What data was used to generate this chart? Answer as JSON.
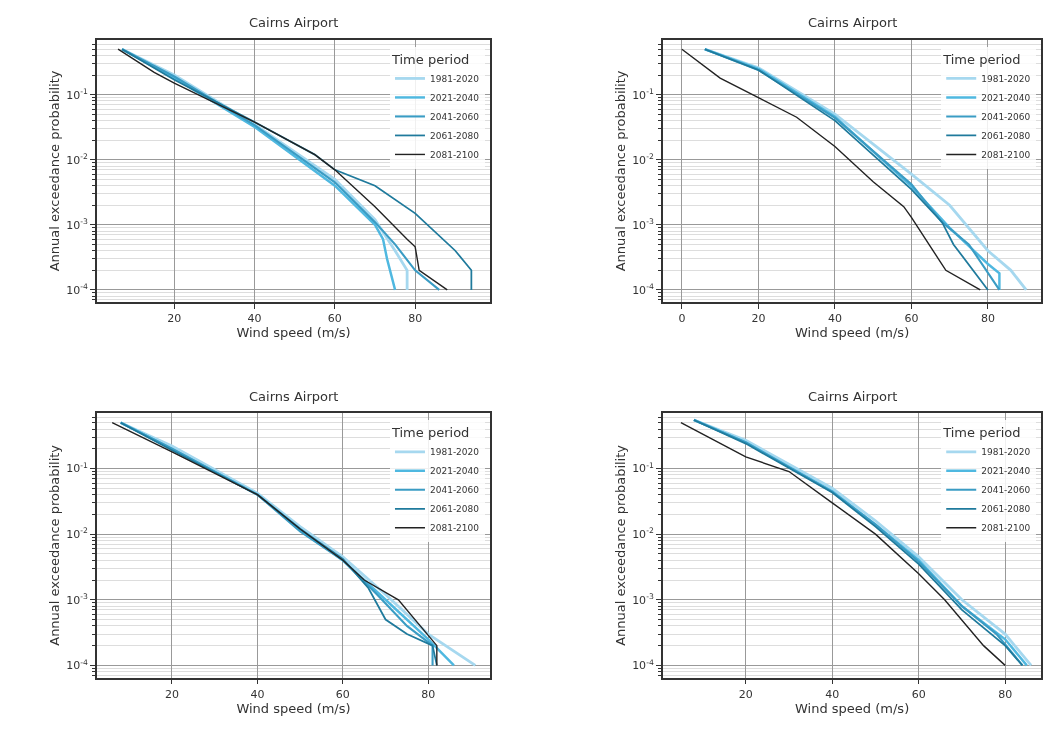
{
  "chart_data": [
    {
      "type": "line",
      "title": "Cairns Airport",
      "xlabel": "Wind speed (m/s)",
      "ylabel": "Annual exceedance probability",
      "legend_title": "Time period",
      "legend": "top right",
      "log": "y",
      "grid": true,
      "xlim": [
        0.7,
        98.7
      ],
      "xticks": [
        20,
        40,
        60,
        80
      ],
      "ylim": [
        6.5e-05,
        0.7
      ],
      "yticks": [
        {
          "value": 0.1,
          "label": "10$^{-1}$"
        },
        {
          "value": 0.01,
          "label": "10$^{-2}$"
        },
        {
          "value": 0.001,
          "label": "10$^{-3}$"
        },
        {
          "value": 0.0001,
          "label": "10$^{-4}$"
        }
      ],
      "series": [
        {
          "name": "1981-2020",
          "color": "#a6d8ef",
          "x": [
            7,
            20,
            40,
            60,
            70,
            75,
            78,
            78
          ],
          "values": [
            0.5,
            0.2,
            0.035,
            0.005,
            0.0012,
            0.0004,
            0.0002,
            0.0001
          ]
        },
        {
          "name": "2021-2040",
          "color": "#4fb8e0",
          "x": [
            7,
            20,
            40,
            60,
            70,
            72,
            73,
            75
          ],
          "values": [
            0.5,
            0.18,
            0.032,
            0.004,
            0.001,
            0.0006,
            0.0003,
            0.0001
          ]
        },
        {
          "name": "2041-2060",
          "color": "#3a9cc4",
          "x": [
            7,
            20,
            40,
            60,
            70,
            75,
            80,
            86
          ],
          "values": [
            0.5,
            0.19,
            0.034,
            0.0045,
            0.0011,
            0.0005,
            0.0002,
            0.0001
          ]
        },
        {
          "name": "2061-2080",
          "color": "#1f7a9c",
          "x": [
            7,
            20,
            40,
            55,
            60,
            70,
            80,
            90,
            94,
            94
          ],
          "values": [
            0.5,
            0.17,
            0.038,
            0.012,
            0.007,
            0.004,
            0.0015,
            0.0004,
            0.0002,
            0.0001
          ]
        },
        {
          "name": "2081-2100",
          "color": "#222222",
          "x": [
            6,
            15,
            20,
            40,
            55,
            60,
            70,
            78,
            80,
            81,
            88
          ],
          "values": [
            0.5,
            0.22,
            0.15,
            0.038,
            0.012,
            0.007,
            0.0019,
            0.0006,
            0.00046,
            0.0002,
            0.0001
          ]
        }
      ]
    },
    {
      "type": "line",
      "title": "Cairns Airport",
      "xlabel": "Wind speed (m/s)",
      "ylabel": "Annual exceedance probability",
      "legend_title": "Time period",
      "legend": "top right",
      "log": "y",
      "grid": true,
      "xlim": [
        -5,
        94
      ],
      "xticks": [
        0,
        20,
        40,
        60,
        80
      ],
      "ylim": [
        6.5e-05,
        0.7
      ],
      "yticks": [
        {
          "value": 0.1,
          "label": "10$^{-1}$"
        },
        {
          "value": 0.01,
          "label": "10$^{-2}$"
        },
        {
          "value": 0.001,
          "label": "10$^{-3}$"
        },
        {
          "value": 0.0001,
          "label": "10$^{-4}$"
        }
      ],
      "series": [
        {
          "name": "1981-2020",
          "color": "#a6d8ef",
          "x": [
            6,
            20,
            40,
            60,
            70,
            80,
            86,
            90
          ],
          "values": [
            0.5,
            0.26,
            0.05,
            0.006,
            0.002,
            0.0004,
            0.0002,
            0.0001
          ]
        },
        {
          "name": "2021-2040",
          "color": "#4fb8e0",
          "x": [
            6,
            20,
            40,
            60,
            70,
            80,
            83,
            83
          ],
          "values": [
            0.5,
            0.25,
            0.046,
            0.0039,
            0.0009,
            0.00025,
            0.00018,
            0.0001
          ]
        },
        {
          "name": "2041-2060",
          "color": "#3a9cc4",
          "x": [
            6,
            20,
            40,
            60,
            68,
            75,
            83
          ],
          "values": [
            0.5,
            0.24,
            0.044,
            0.0042,
            0.0011,
            0.0005,
            0.0001
          ]
        },
        {
          "name": "2061-2080",
          "color": "#1f7a9c",
          "x": [
            6,
            20,
            40,
            60,
            68,
            71,
            80
          ],
          "values": [
            0.5,
            0.24,
            0.04,
            0.0035,
            0.0011,
            0.0005,
            0.0001
          ]
        },
        {
          "name": "2081-2100",
          "color": "#222222",
          "x": [
            0,
            10,
            20,
            30,
            40,
            50,
            58,
            60,
            69,
            78
          ],
          "values": [
            0.5,
            0.18,
            0.09,
            0.045,
            0.016,
            0.0046,
            0.0019,
            0.0013,
            0.0002,
            0.0001
          ]
        }
      ]
    },
    {
      "type": "line",
      "title": "Cairns Airport",
      "xlabel": "Wind speed (m/s)",
      "ylabel": "Annual exceedance probability",
      "legend_title": "Time period",
      "legend": "top right",
      "log": "y",
      "grid": true,
      "xlim": [
        2.4,
        94.5
      ],
      "xticks": [
        20,
        40,
        60,
        80
      ],
      "ylim": [
        6.5e-05,
        0.7
      ],
      "yticks": [
        {
          "value": 0.1,
          "label": "10$^{-1}$"
        },
        {
          "value": 0.01,
          "label": "10$^{-2}$"
        },
        {
          "value": 0.001,
          "label": "10$^{-3}$"
        },
        {
          "value": 0.0001,
          "label": "10$^{-4}$"
        }
      ],
      "series": [
        {
          "name": "1981-2020",
          "color": "#a6d8ef",
          "x": [
            8,
            20,
            40,
            50,
            60,
            70,
            80,
            91
          ],
          "values": [
            0.5,
            0.22,
            0.042,
            0.013,
            0.0045,
            0.0012,
            0.0003,
            0.0001
          ]
        },
        {
          "name": "2021-2040",
          "color": "#4fb8e0",
          "x": [
            8,
            20,
            40,
            50,
            60,
            70,
            80,
            86
          ],
          "values": [
            0.5,
            0.2,
            0.04,
            0.012,
            0.004,
            0.001,
            0.00025,
            0.0001
          ]
        },
        {
          "name": "2041-2060",
          "color": "#3a9cc4",
          "x": [
            8,
            20,
            40,
            50,
            60,
            68,
            75,
            81,
            81
          ],
          "values": [
            0.5,
            0.2,
            0.04,
            0.011,
            0.004,
            0.0012,
            0.0004,
            0.0002,
            0.0001
          ]
        },
        {
          "name": "2061-2080",
          "color": "#1f7a9c",
          "x": [
            8,
            20,
            40,
            50,
            60,
            66,
            70,
            75,
            81,
            82
          ],
          "values": [
            0.5,
            0.19,
            0.04,
            0.012,
            0.0042,
            0.0015,
            0.0005,
            0.0003,
            0.0002,
            0.0001
          ]
        },
        {
          "name": "2081-2100",
          "color": "#222222",
          "x": [
            6,
            20,
            40,
            50,
            60,
            65,
            73,
            82,
            82
          ],
          "values": [
            0.5,
            0.18,
            0.04,
            0.012,
            0.004,
            0.002,
            0.001,
            0.0002,
            0.0001
          ]
        }
      ]
    },
    {
      "type": "line",
      "title": "Cairns Airport",
      "xlabel": "Wind speed (m/s)",
      "ylabel": "Annual exceedance probability",
      "legend_title": "Time period",
      "legend": "top right",
      "log": "y",
      "grid": true,
      "xlim": [
        0.8,
        88.4
      ],
      "xticks": [
        20,
        40,
        60,
        80
      ],
      "ylim": [
        6.5e-05,
        0.7
      ],
      "yticks": [
        {
          "value": 0.1,
          "label": "10$^{-1}$"
        },
        {
          "value": 0.01,
          "label": "10$^{-2}$"
        },
        {
          "value": 0.001,
          "label": "10$^{-3}$"
        },
        {
          "value": 0.0001,
          "label": "10$^{-4}$"
        }
      ],
      "series": [
        {
          "name": "1981-2020",
          "color": "#a6d8ef",
          "x": [
            8,
            20,
            40,
            50,
            60,
            70,
            80,
            86
          ],
          "values": [
            0.55,
            0.27,
            0.05,
            0.016,
            0.0045,
            0.001,
            0.0003,
            0.0001
          ]
        },
        {
          "name": "2021-2040",
          "color": "#4fb8e0",
          "x": [
            8,
            20,
            40,
            50,
            60,
            70,
            80,
            85
          ],
          "values": [
            0.55,
            0.25,
            0.045,
            0.014,
            0.004,
            0.0008,
            0.00025,
            0.0001
          ]
        },
        {
          "name": "2041-2060",
          "color": "#3a9cc4",
          "x": [
            8,
            20,
            40,
            50,
            60,
            70,
            78,
            84
          ],
          "values": [
            0.55,
            0.25,
            0.044,
            0.014,
            0.0038,
            0.0008,
            0.0003,
            0.0001
          ]
        },
        {
          "name": "2061-2080",
          "color": "#1f7a9c",
          "x": [
            8,
            20,
            40,
            50,
            60,
            70,
            80,
            84
          ],
          "values": [
            0.55,
            0.24,
            0.043,
            0.013,
            0.0035,
            0.0007,
            0.0002,
            0.0001
          ]
        },
        {
          "name": "2081-2100",
          "color": "#222222",
          "x": [
            5,
            20,
            30,
            40,
            50,
            60,
            66,
            75,
            80
          ],
          "values": [
            0.5,
            0.15,
            0.09,
            0.03,
            0.01,
            0.0025,
            0.001,
            0.0002,
            0.0001
          ]
        }
      ]
    }
  ]
}
